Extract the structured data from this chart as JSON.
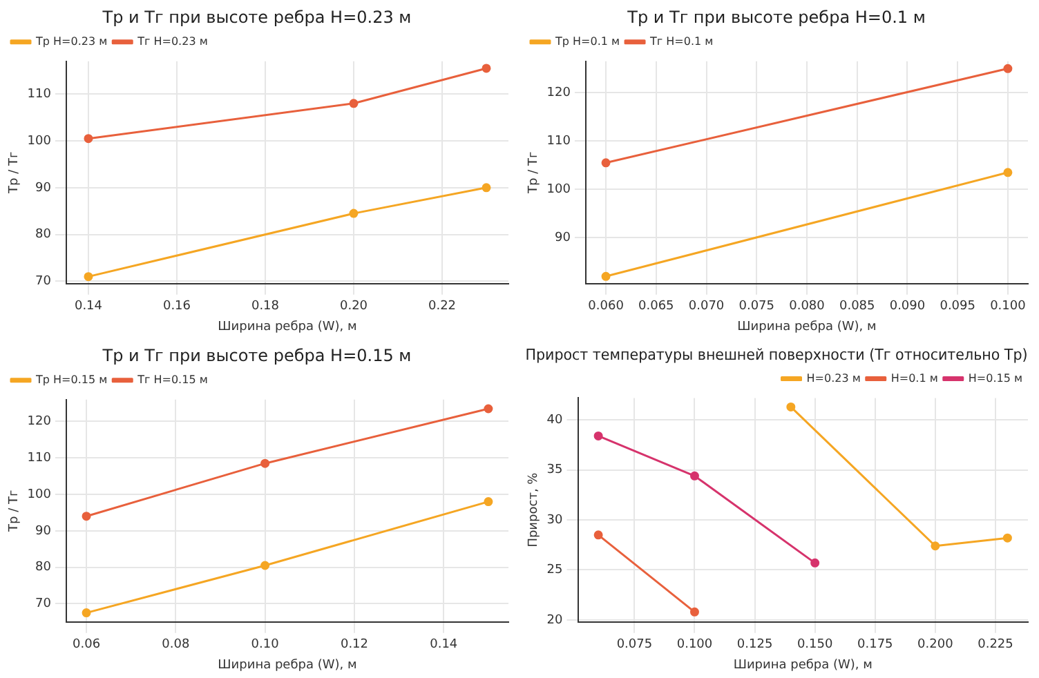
{
  "chart_data": [
    {
      "type": "line",
      "title": "Тр и Тг при высоте ребра H=0.23 м",
      "xlabel": "Ширина ребра (W), м",
      "ylabel": "Тр / Тг",
      "legend": "top left",
      "grid": true,
      "marker": "circle",
      "xlim": [
        0.135,
        0.235
      ],
      "xticks": [
        0.14,
        0.16,
        0.18,
        {
          "value": 0.2,
          "label": "0.20"
        },
        0.22
      ],
      "ylim": [
        69.5,
        117
      ],
      "yticks": [
        70,
        80,
        90,
        100,
        110
      ],
      "series": [
        {
          "name": "Тр H=0.23 м",
          "color": "#f5a623",
          "x": [
            0.14,
            0.2,
            0.23
          ],
          "values": [
            71,
            84.5,
            90
          ]
        },
        {
          "name": "Тг H=0.23 м",
          "color": "#e8603c",
          "x": [
            0.14,
            0.2,
            0.23
          ],
          "values": [
            100.5,
            108,
            115.5
          ]
        }
      ]
    },
    {
      "type": "line",
      "title": "Тр и Тг при высоте ребра H=0.1 м",
      "xlabel": "Ширина ребра (W), м",
      "ylabel": "Тр / Тг",
      "legend": "top left",
      "grid": true,
      "marker": "circle",
      "xlim": [
        0.058,
        0.102
      ],
      "xticks": [
        {
          "value": 0.06,
          "label": "0.060"
        },
        0.065,
        {
          "value": 0.07,
          "label": "0.070"
        },
        0.075,
        {
          "value": 0.08,
          "label": "0.080"
        },
        0.085,
        {
          "value": 0.09,
          "label": "0.090"
        },
        0.095,
        {
          "value": 0.1,
          "label": "0.100"
        }
      ],
      "ylim": [
        80.5,
        126.5
      ],
      "yticks": [
        90,
        100,
        110,
        120
      ],
      "series": [
        {
          "name": "Тр H=0.1 м",
          "color": "#f5a623",
          "x": [
            0.06,
            0.1
          ],
          "values": [
            82,
            103.5
          ]
        },
        {
          "name": "Тг H=0.1 м",
          "color": "#e8603c",
          "x": [
            0.06,
            0.1
          ],
          "values": [
            105.5,
            125
          ]
        }
      ]
    },
    {
      "type": "line",
      "title": "Тр и Тг при высоте ребра H=0.15 м",
      "xlabel": "Ширина ребра (W), м",
      "ylabel": "Тр / Тг",
      "legend": "top left",
      "grid": true,
      "marker": "circle",
      "xlim": [
        0.0555,
        0.1545
      ],
      "xticks": [
        0.06,
        0.08,
        {
          "value": 0.1,
          "label": "0.10"
        },
        0.12,
        0.14
      ],
      "ylim": [
        65,
        126
      ],
      "yticks": [
        70,
        80,
        90,
        100,
        110,
        120
      ],
      "series": [
        {
          "name": "Тр H=0.15 м",
          "color": "#f5a623",
          "x": [
            0.06,
            0.1,
            0.15
          ],
          "values": [
            67.5,
            80.5,
            98
          ]
        },
        {
          "name": "Тг H=0.15 м",
          "color": "#e8603c",
          "x": [
            0.06,
            0.1,
            0.15
          ],
          "values": [
            94,
            108.5,
            123.5
          ]
        }
      ]
    },
    {
      "type": "line",
      "title": "Прирост температуры внешней поверхности (Тг относительно Тр)",
      "xlabel": "Ширина ребра (W), м",
      "ylabel": "Прирост, %",
      "legend": "top right",
      "grid": true,
      "marker": "circle",
      "xlim": [
        0.0515,
        0.2385
      ],
      "xticks": [
        0.075,
        {
          "value": 0.1,
          "label": "0.100"
        },
        0.125,
        {
          "value": 0.15,
          "label": "0.150"
        },
        0.175,
        {
          "value": 0.2,
          "label": "0.200"
        },
        0.225
      ],
      "ylim": [
        19.8,
        42.2
      ],
      "yticks": [
        20,
        25,
        30,
        35,
        40
      ],
      "series": [
        {
          "name": "H=0.23 м",
          "color": "#f5a623",
          "x": [
            0.14,
            0.2,
            0.23
          ],
          "values": [
            41.3,
            27.4,
            28.2
          ]
        },
        {
          "name": "H=0.1 м",
          "color": "#e8603c",
          "x": [
            0.06,
            0.1
          ],
          "values": [
            28.5,
            20.8
          ]
        },
        {
          "name": "H=0.15 м",
          "color": "#d6336c",
          "x": [
            0.06,
            0.1,
            0.15
          ],
          "values": [
            38.4,
            34.4,
            25.7
          ]
        }
      ]
    }
  ]
}
